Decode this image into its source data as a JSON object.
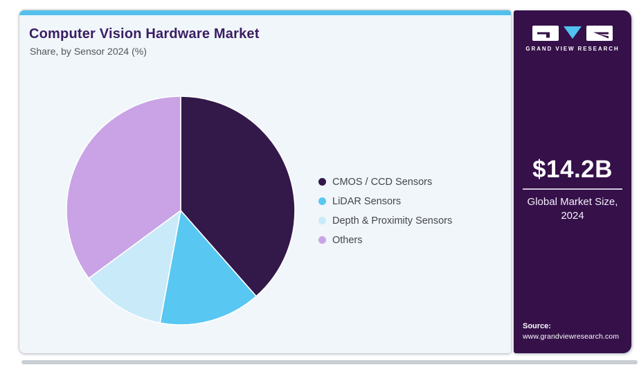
{
  "header": {
    "title": "Computer Vision Hardware Market",
    "subtitle": "Share, by Sensor 2024 (%)"
  },
  "chart_data": {
    "type": "pie",
    "title": "Computer Vision Hardware Market",
    "subtitle": "Share, by Sensor 2024 (%)",
    "unit": "%",
    "categories": [
      "CMOS / CCD Sensors",
      "LiDAR Sensors",
      "Depth & Proximity Sensors",
      "Others"
    ],
    "values": [
      38.5,
      14.4,
      12.0,
      35.1
    ],
    "colors": [
      "#33184a",
      "#58c7f2",
      "#c9eaf8",
      "#c9a3e5"
    ],
    "start_angle_deg": 0,
    "direction": "clockwise",
    "legend_position": "right",
    "slice_stroke": "#ffffff"
  },
  "sidebar": {
    "brand_name": "GRAND VIEW RESEARCH",
    "market_size_value": "$14.2B",
    "market_size_label": "Global Market Size, 2024",
    "source_label": "Source:",
    "source_url": "www.grandviewresearch.com"
  },
  "theme": {
    "accent_cyan": "#52c0ea",
    "sidebar_purple": "#351049",
    "title_purple": "#3a1d63",
    "card_background": "#f0f6fa",
    "logo_triangle_cyan": "#4fc2ef"
  }
}
